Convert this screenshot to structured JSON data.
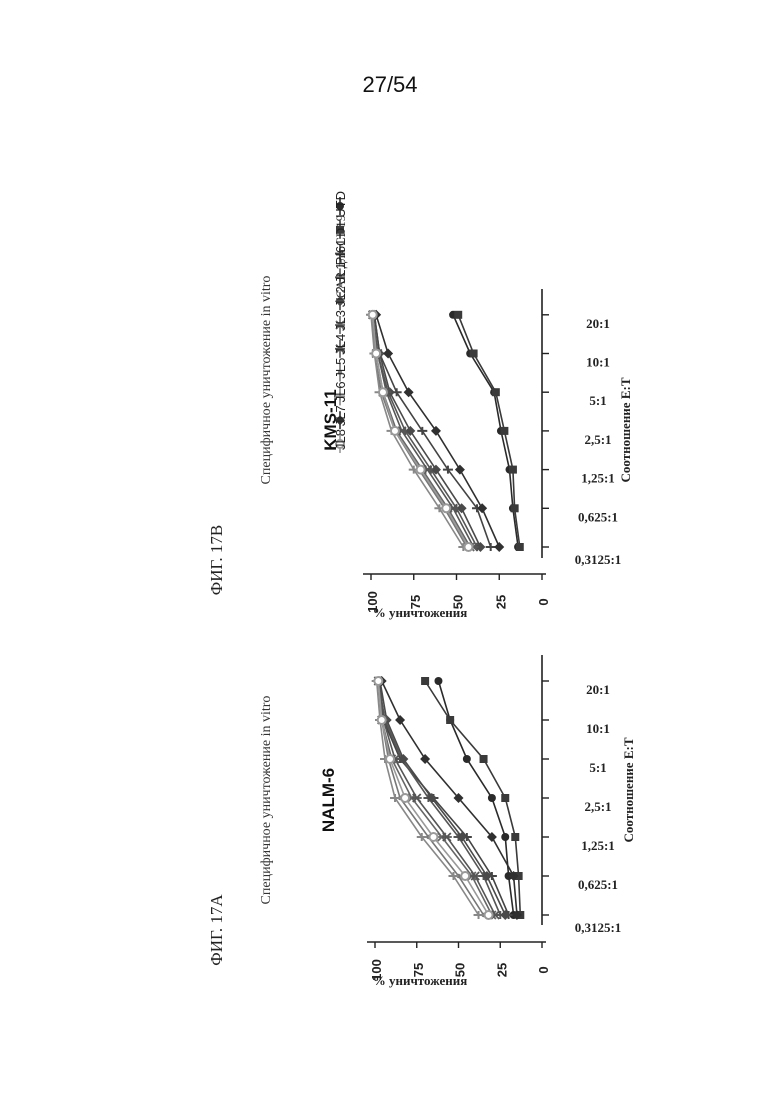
{
  "page_number": "27/54",
  "chart_data": [
    {
      "type": "line",
      "figure_label": "ФИГ. 17A",
      "title": "Специфичное уничтожение in vitro",
      "subtitle": "NALM-6",
      "xlabel": "Соотношение E:T",
      "ylabel": "% уничтожения",
      "categories": [
        "0,3125:1",
        "0,625:1",
        "1,25:1",
        "2,5:1",
        "5:1",
        "10:1",
        "20:1"
      ],
      "yticks": [
        "100",
        "75",
        "50",
        "25",
        "0"
      ],
      "ylim": [
        0,
        100
      ],
      "series": [
        {
          "name": "UTD",
          "values": [
            17,
            20,
            22,
            30,
            45,
            55,
            62
          ]
        },
        {
          "name": "CAR для CD19",
          "values": [
            13,
            14,
            16,
            22,
            35,
            55,
            70
          ]
        },
        {
          "name": "PI61",
          "values": [
            20,
            30,
            45,
            65,
            85,
            95,
            97
          ]
        },
        {
          "name": "JL1",
          "values": [
            25,
            35,
            50,
            68,
            84,
            94,
            98
          ]
        },
        {
          "name": "JL2",
          "values": [
            22,
            33,
            48,
            66,
            83,
            93,
            97
          ]
        },
        {
          "name": "JL3",
          "values": [
            30,
            42,
            60,
            78,
            90,
            96,
            98
          ]
        },
        {
          "name": "JL4",
          "values": [
            28,
            40,
            57,
            75,
            88,
            95,
            98
          ]
        },
        {
          "name": "JL5",
          "values": [
            35,
            50,
            68,
            85,
            92,
            96,
            98
          ]
        },
        {
          "name": "JL6",
          "values": [
            38,
            53,
            72,
            88,
            94,
            97,
            99
          ]
        },
        {
          "name": "JL7",
          "values": [
            15,
            17,
            30,
            50,
            70,
            85,
            96
          ]
        },
        {
          "name": "JL8",
          "values": [
            32,
            46,
            65,
            82,
            91,
            96,
            98
          ]
        }
      ]
    },
    {
      "type": "line",
      "figure_label": "ФИГ. 17B",
      "title": "Специфичное уничтожение in vitro",
      "subtitle": "KMS-11",
      "xlabel": "Соотношение E:T",
      "ylabel": "% уничтожения",
      "categories": [
        "0,3125:1",
        "0,625:1",
        "1,25:1",
        "2,5:1",
        "5:1",
        "10:1",
        "20:1"
      ],
      "yticks": [
        "100",
        "75",
        "50",
        "25",
        "0"
      ],
      "ylim": [
        0,
        100
      ],
      "series": [
        {
          "name": "UTD",
          "values": [
            14,
            17,
            19,
            24,
            28,
            42,
            52
          ]
        },
        {
          "name": "CAR для CD19",
          "values": [
            13,
            16,
            17,
            22,
            27,
            40,
            49
          ]
        },
        {
          "name": "PI61",
          "values": [
            30,
            38,
            55,
            70,
            85,
            95,
            98
          ]
        },
        {
          "name": "JL1",
          "values": [
            38,
            50,
            65,
            80,
            90,
            96,
            99
          ]
        },
        {
          "name": "JL2",
          "values": [
            36,
            47,
            62,
            77,
            89,
            95,
            98
          ]
        },
        {
          "name": "JL3",
          "values": [
            42,
            55,
            70,
            85,
            93,
            97,
            99
          ]
        },
        {
          "name": "JL4",
          "values": [
            40,
            52,
            67,
            82,
            91,
            96,
            99
          ]
        },
        {
          "name": "JL5",
          "values": [
            44,
            57,
            72,
            86,
            94,
            98,
            99
          ]
        },
        {
          "name": "JL6",
          "values": [
            46,
            60,
            75,
            88,
            95,
            98,
            100
          ]
        },
        {
          "name": "JL7",
          "values": [
            25,
            35,
            48,
            62,
            78,
            90,
            97
          ]
        },
        {
          "name": "JL8",
          "values": [
            43,
            56,
            71,
            86,
            93,
            97,
            99
          ]
        }
      ]
    }
  ]
}
